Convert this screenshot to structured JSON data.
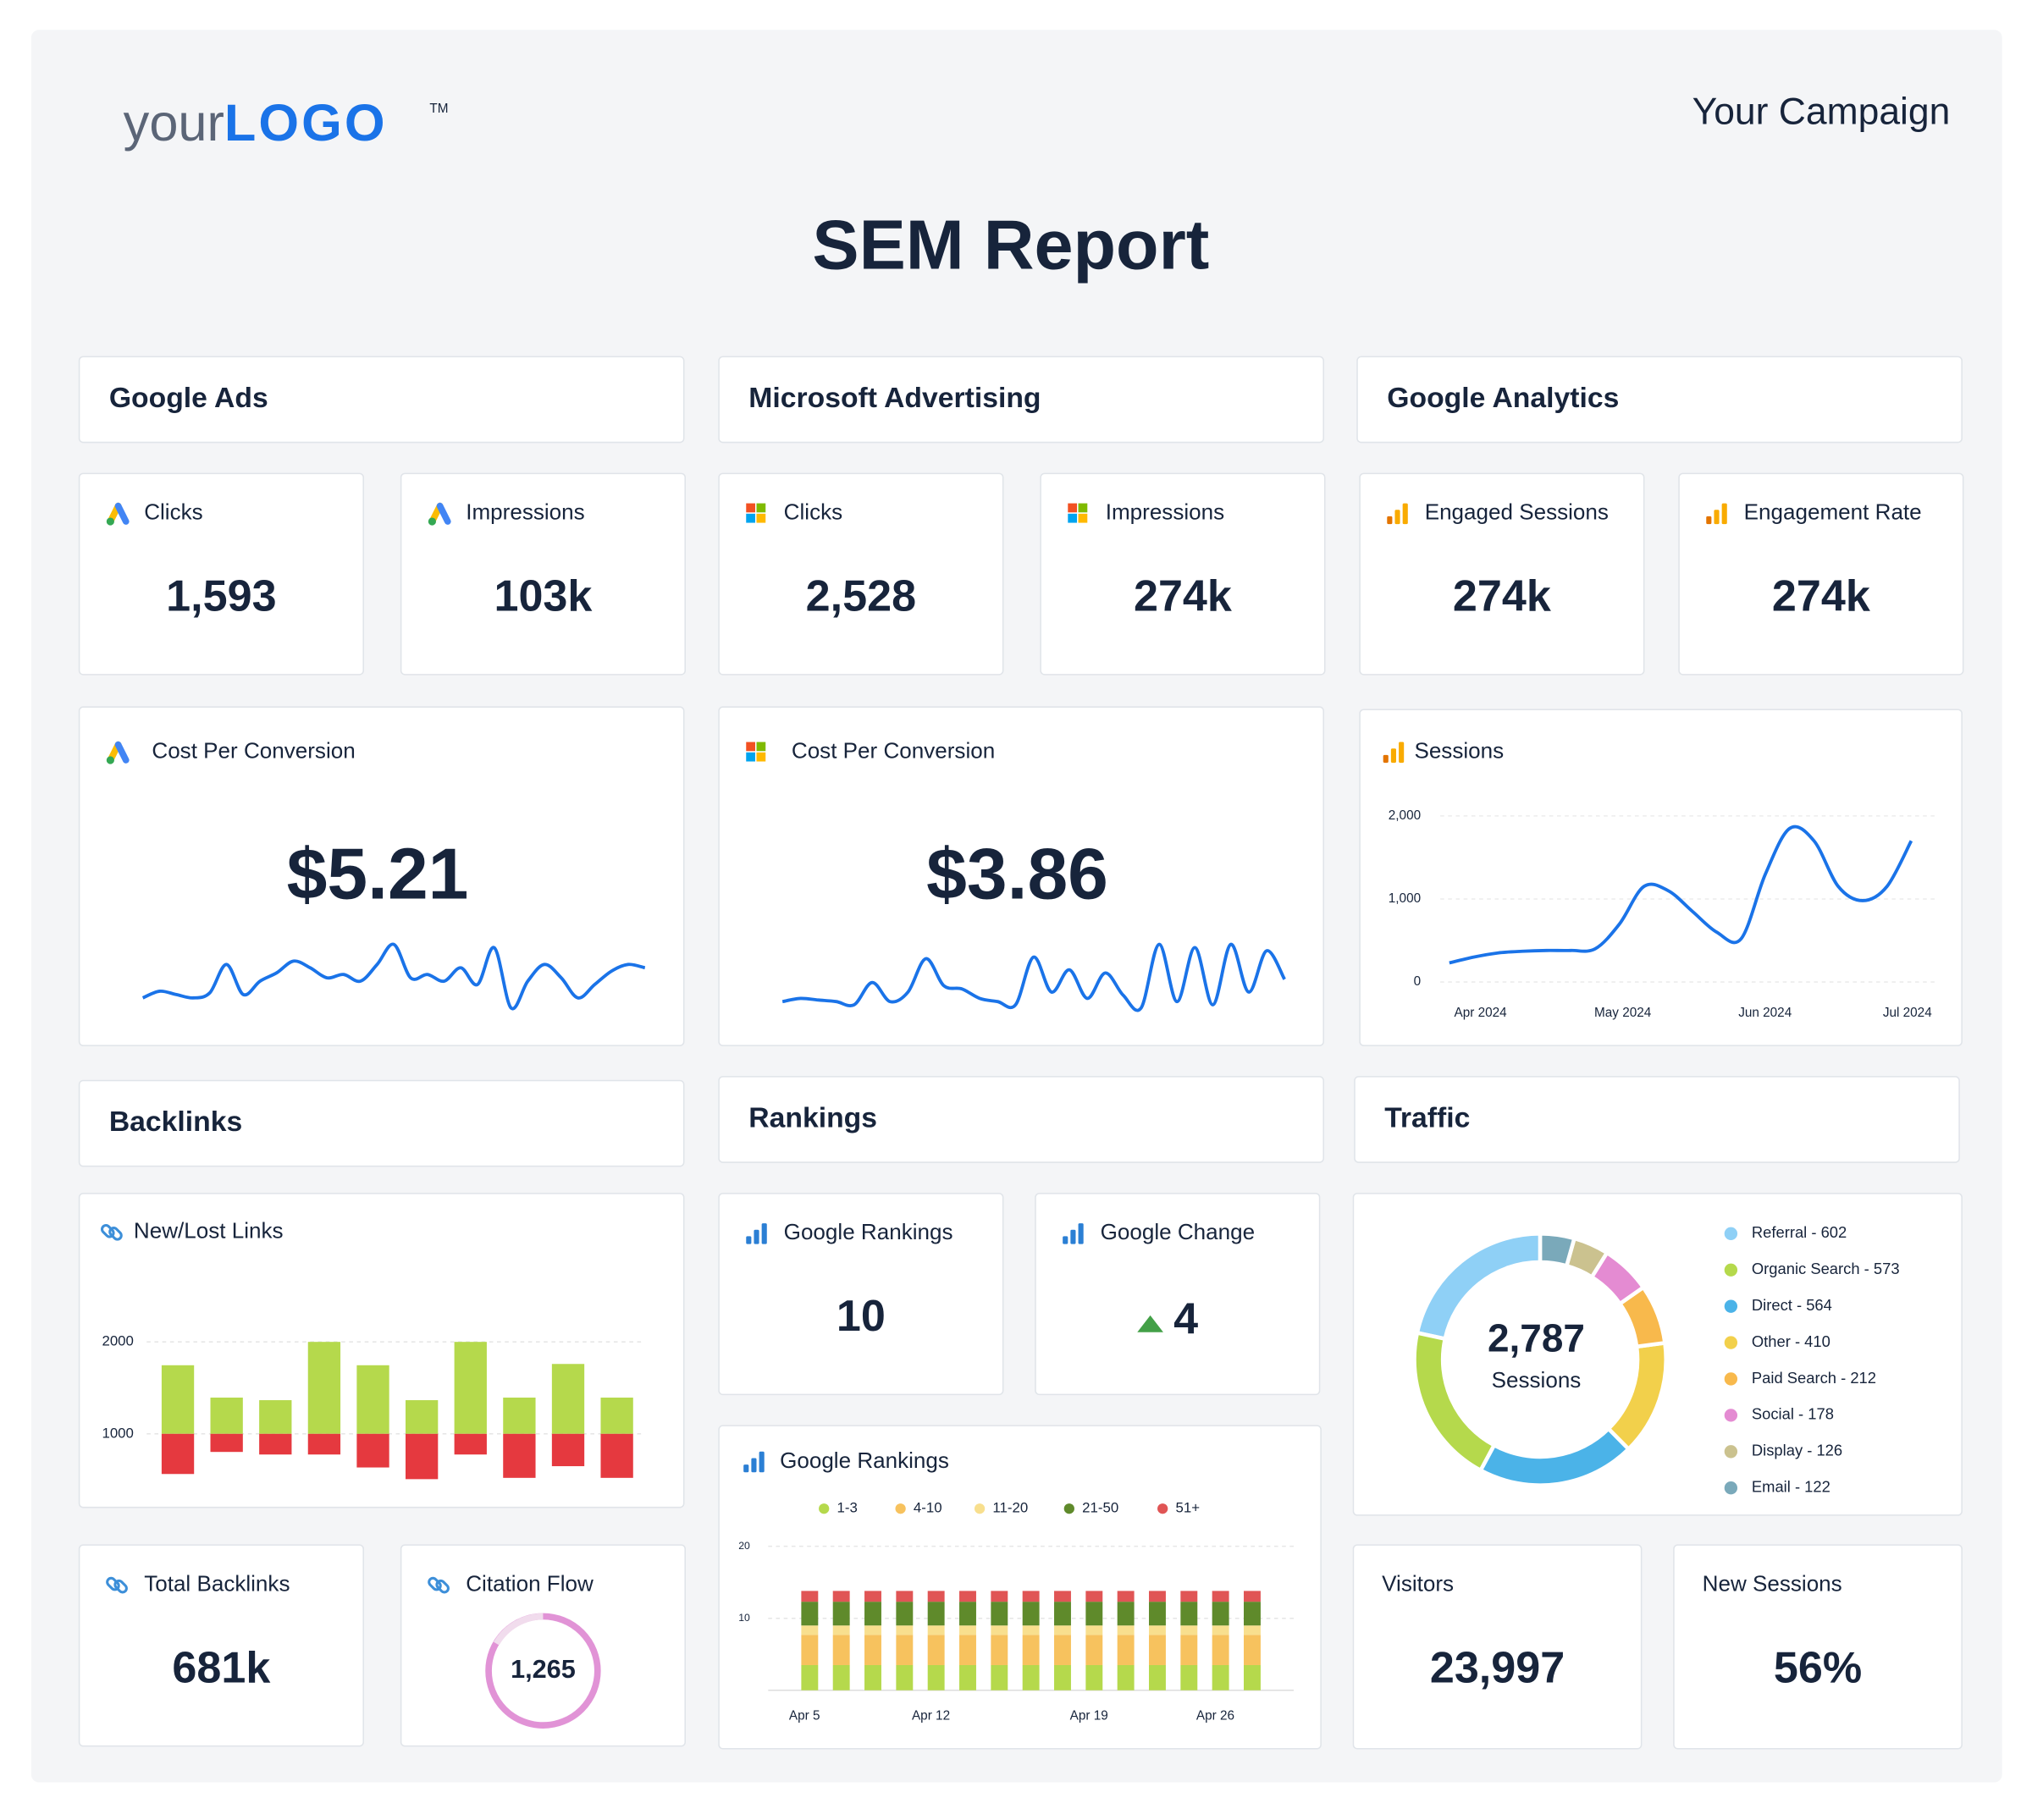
{
  "header": {
    "logo_prefix": "your",
    "logo_main": "LOGO",
    "logo_mark": "TM",
    "campaign": "Your Campaign",
    "title": "SEM Report"
  },
  "sections": [
    "Google Ads",
    "Microsoft Advertising",
    "Google Analytics",
    "Backlinks",
    "Rankings",
    "Traffic"
  ],
  "kpis": [
    {
      "label": "Clicks",
      "value": "1,593"
    },
    {
      "label": "Impressions",
      "value": "103k"
    },
    {
      "label": "Clicks",
      "value": "2,528"
    },
    {
      "label": "Impressions",
      "value": "274k"
    },
    {
      "label": "Engaged Sessions",
      "value": "274k"
    },
    {
      "label": "Engagement Rate",
      "value": "274k"
    },
    {
      "label": "Google Rankings",
      "value": "10"
    },
    {
      "label": "Google Change",
      "value": "4"
    },
    {
      "label": "Total Backlinks",
      "value": "681k"
    },
    {
      "label": "Citation Flow",
      "value": "1,265"
    },
    {
      "label": "Visitors",
      "value": "23,997"
    },
    {
      "label": "New Sessions",
      "value": "56%"
    }
  ],
  "cost_per_conversion": [
    {
      "label": "Cost Per Conversion",
      "value": "$5.21",
      "sparkline": {
        "type": "line",
        "color": "#1a73e8",
        "values": [
          10,
          14,
          12,
          10,
          13,
          30,
          12,
          20,
          25,
          32,
          28,
          22,
          24,
          20,
          30,
          42,
          22,
          24,
          20,
          28,
          18,
          40,
          4,
          20,
          30,
          22,
          10,
          18,
          26,
          30,
          28
        ]
      }
    },
    {
      "label": "Cost Per Conversion",
      "value": "$3.86",
      "sparkline": {
        "type": "line",
        "color": "#1a73e8",
        "values": [
          8,
          10,
          9,
          8,
          6,
          20,
          8,
          14,
          35,
          18,
          16,
          10,
          8,
          6,
          36,
          14,
          28,
          10,
          26,
          12,
          4,
          44,
          8,
          42,
          6,
          44,
          14,
          40,
          22
        ]
      }
    }
  ],
  "sessions_chart": {
    "type": "line",
    "title": "Sessions",
    "color": "#1a73e8",
    "xtick_labels": [
      "Apr 2024",
      "May 2024",
      "Jun 2024",
      "Jul 2024"
    ],
    "values": [
      230,
      300,
      350,
      370,
      380,
      380,
      400,
      700,
      1150,
      1100,
      850,
      600,
      520,
      1300,
      1850,
      1700,
      1150,
      980,
      1150,
      1700
    ],
    "ylim": [
      0,
      2000
    ],
    "yticks": [
      0,
      {
        "value": 1000,
        "label": "1,000"
      },
      {
        "value": 2000,
        "label": "2,000"
      }
    ],
    "grid": true
  },
  "links_chart": {
    "type": "bar",
    "title": "New/Lost Links",
    "series": [
      {
        "color": "#b5d94c",
        "values": [
          1746,
          1394,
          1366,
          2000,
          1746,
          1366,
          2000,
          1394,
          1760,
          1394
        ]
      },
      {
        "color": "#e5393f",
        "values": [
          563,
          803,
          775,
          775,
          634,
          507,
          775,
          521,
          648,
          521
        ]
      }
    ],
    "ylim": [
      200,
      2500
    ],
    "yticks": [
      1000,
      2000
    ],
    "grid": true
  },
  "rankings_chart": {
    "type": "stacked_bar",
    "title": "Google Rankings",
    "categories": [
      "Apr 5",
      null,
      null,
      null,
      "Apr 12",
      null,
      null,
      null,
      null,
      "Apr 19",
      null,
      null,
      null,
      "Apr 26",
      null
    ],
    "series": [
      {
        "name": "1-3",
        "color": "#b5d94c",
        "values": [
          3.5,
          3.5,
          3.5,
          3.5,
          3.5,
          3.5,
          3.5,
          3.5,
          3.5,
          3.5,
          3.5,
          3.5,
          3.5,
          3.5,
          3.5
        ]
      },
      {
        "name": "4-10",
        "color": "#f7c25e",
        "values": [
          4.2,
          4.2,
          4.2,
          4.2,
          4.2,
          4.2,
          4.2,
          4.2,
          4.2,
          4.2,
          4.2,
          4.2,
          4.2,
          4.2,
          4.2
        ]
      },
      {
        "name": "11-20",
        "color": "#f8df8e",
        "values": [
          1.3,
          1.3,
          1.3,
          1.3,
          1.3,
          1.3,
          1.3,
          1.3,
          1.3,
          1.3,
          1.3,
          1.3,
          1.3,
          1.3,
          1.3
        ]
      },
      {
        "name": "21-50",
        "color": "#5f8a2b",
        "values": [
          3.3,
          3.3,
          3.3,
          3.3,
          3.3,
          3.3,
          3.3,
          3.3,
          3.3,
          3.3,
          3.3,
          3.3,
          3.3,
          3.3,
          3.3
        ]
      },
      {
        "name": "51+",
        "color": "#e05555",
        "values": [
          1.5,
          1.5,
          1.5,
          1.5,
          1.5,
          1.5,
          1.5,
          1.5,
          1.5,
          1.5,
          1.5,
          1.5,
          1.5,
          1.5,
          1.5
        ]
      }
    ],
    "ylim": [
      0,
      20
    ],
    "yticks": [
      10,
      20
    ],
    "grid": true
  },
  "traffic_chart": {
    "type": "donut",
    "center_value": "2,787",
    "center_label": "Sessions",
    "labels": [
      "Referral - 602",
      "Organic Search - 573",
      "Direct - 564",
      "Other - 410",
      "Paid Search - 212",
      "Social - 178",
      "Display - 126",
      "Email - 122"
    ],
    "values": [
      602,
      573,
      564,
      410,
      212,
      178,
      126,
      122
    ],
    "colors": [
      "#8fd0f6",
      "#b5d94c",
      "#4bb3e8",
      "#f2d04b",
      "#f8b94c",
      "#e48bd2",
      "#cbc28f",
      "#7aa9ba"
    ]
  }
}
